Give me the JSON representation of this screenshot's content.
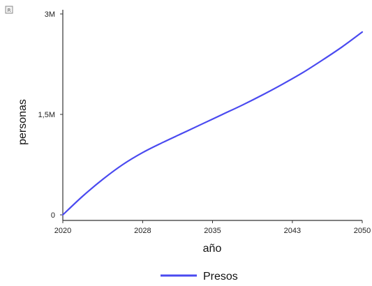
{
  "corner_icon": {
    "name": "chart-menu-icon",
    "glyph": "R"
  },
  "chart_data": {
    "type": "line",
    "xlabel": "año",
    "ylabel": "personas",
    "xlim": [
      2020,
      2050
    ],
    "ylim": [
      0,
      3000000
    ],
    "x_ticks": [
      2020,
      2028,
      2035,
      2043,
      2050
    ],
    "x_tick_labels": [
      "2020",
      "2028",
      "2035",
      "2043",
      "2050"
    ],
    "y_ticks": [
      0,
      1500000,
      3000000
    ],
    "y_tick_labels": [
      "0",
      "1,5M",
      "3M"
    ],
    "grid": false,
    "legend_position": "bottom",
    "series": [
      {
        "name": "Presos",
        "color": "#4a4af0",
        "x": [
          2020,
          2022,
          2024,
          2026,
          2028,
          2030,
          2032,
          2034,
          2036,
          2038,
          2040,
          2042,
          2044,
          2046,
          2048,
          2050
        ],
        "y": [
          0,
          280000,
          530000,
          750000,
          930000,
          1080000,
          1220000,
          1360000,
          1500000,
          1640000,
          1790000,
          1950000,
          2120000,
          2310000,
          2510000,
          2730000
        ]
      }
    ]
  }
}
